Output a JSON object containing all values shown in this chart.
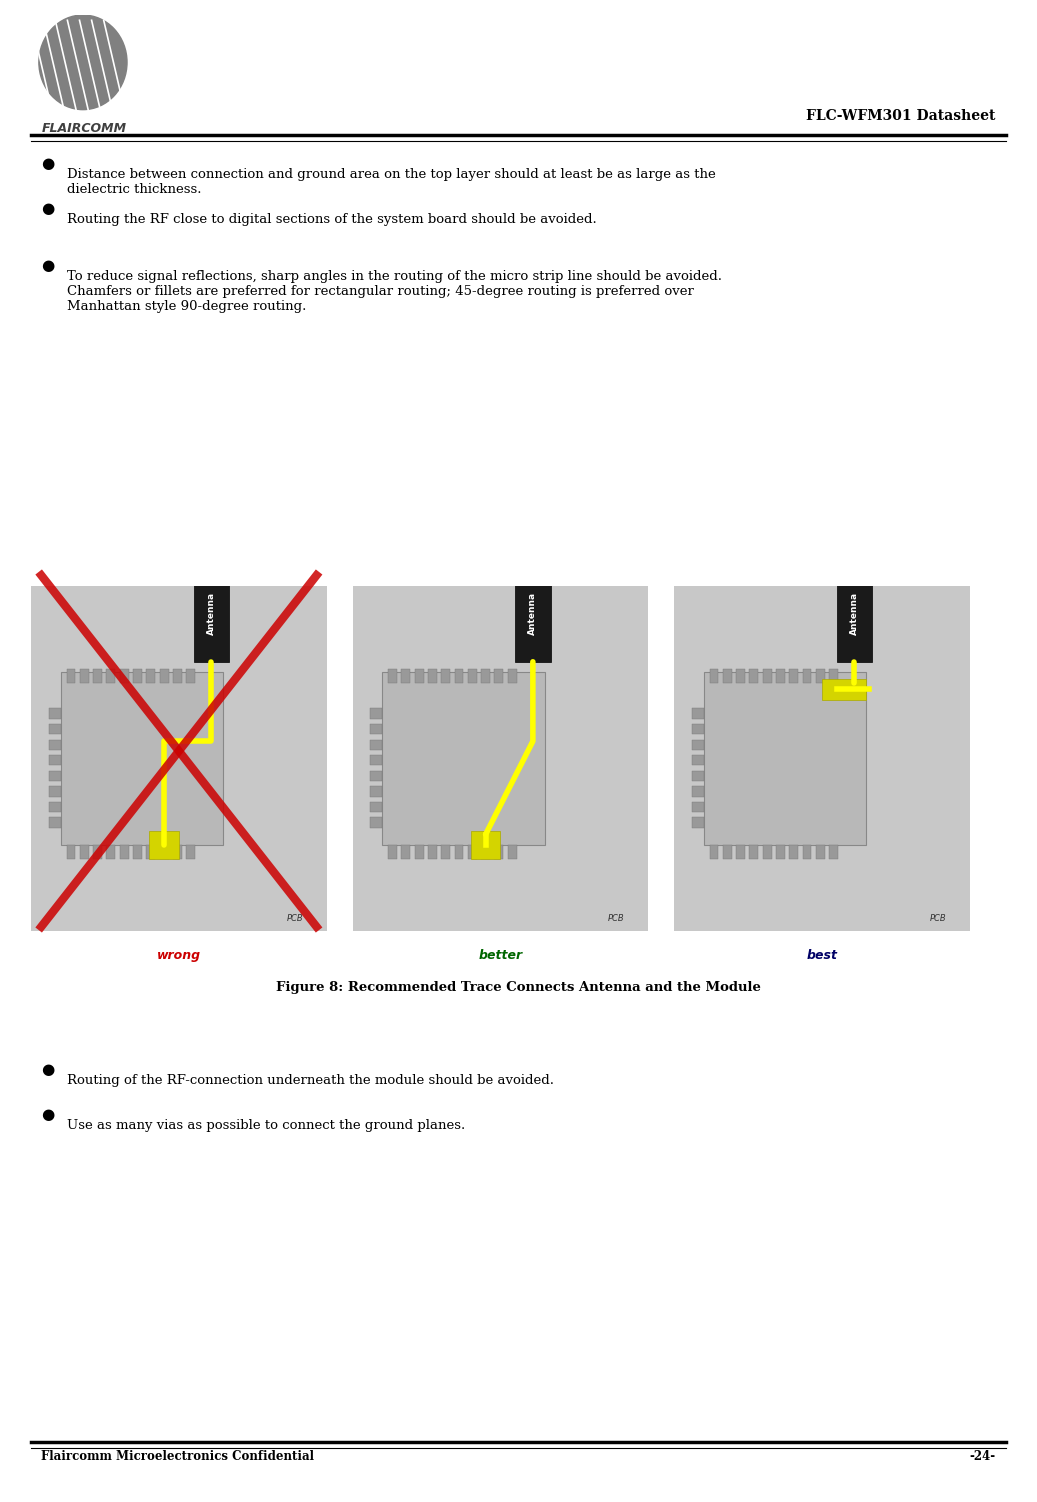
{
  "title_right": "FLC-WFM301 Datasheet",
  "footer_left": "Flaircomm Microelectronics Confidential",
  "footer_right": "-24-",
  "bullet_points_top": [
    "Distance between connection and ground area on the top layer should at least be as large as the\ndielectric thickness.",
    "Routing the RF close to digital sections of the system board should be avoided.",
    "To reduce signal reflections, sharp angles in the routing of the micro strip line should be avoided.\nChamfers or fillets are preferred for rectangular routing; 45-degree routing is preferred over\nManhattan style 90-degree routing."
  ],
  "figure_caption": "Figure 8: Recommended Trace Connects Antenna and the Module",
  "labels": [
    "wrong",
    "better",
    "best"
  ],
  "label_colors": [
    "#cc0000",
    "#006600",
    "#000066"
  ],
  "bullet_points_bottom": [
    "Routing of the RF-connection underneath the module should be avoided.",
    "Use as many vias as possible to connect the ground planes."
  ],
  "bg_color": "#ffffff",
  "text_color": "#000000",
  "header_line_color": "#000000",
  "pcb_bg": "#c8c8c8",
  "module_bg": "#b0b0b0",
  "antenna_color": "#1a1a1a",
  "trace_color": "#ffff00",
  "cross_color": "#cc0000"
}
